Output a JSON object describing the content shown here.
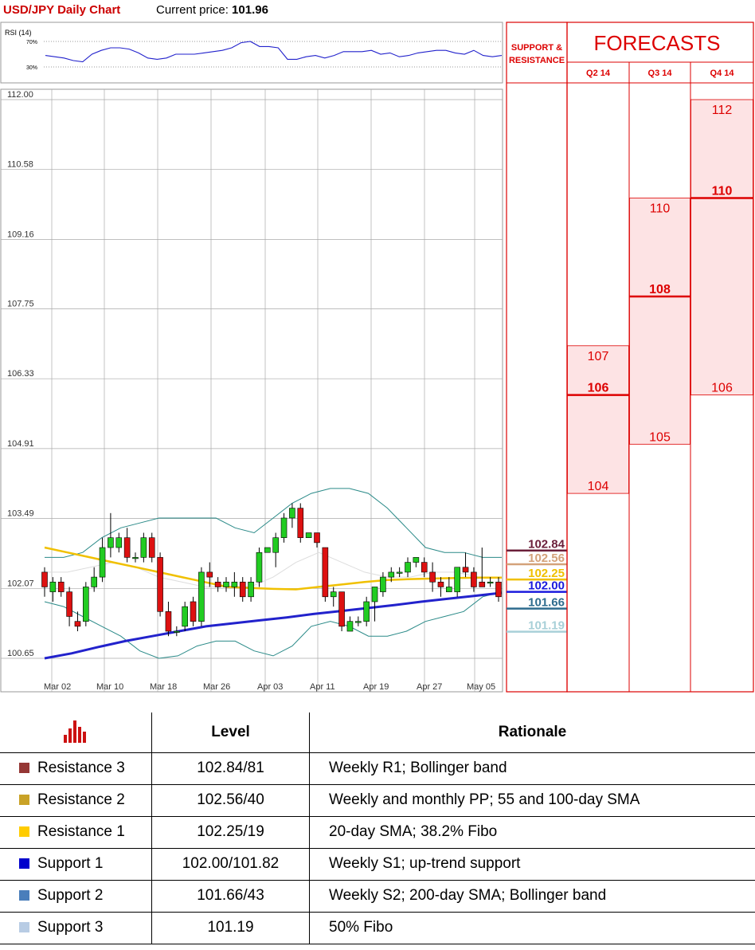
{
  "header": {
    "title": "USD/JPY Daily Chart",
    "price_label": "Current price:",
    "price_value": "101.96"
  },
  "chart_data": {
    "type": "candlestick",
    "y_ticks": [
      "112.00",
      "110.58",
      "109.16",
      "107.75",
      "106.33",
      "104.91",
      "103.49",
      "102.07",
      "100.65"
    ],
    "ylim": [
      100.5,
      112.0
    ],
    "x_ticks": [
      "Mar 02",
      "Mar 10",
      "Mar 18",
      "Mar 26",
      "Apr 03",
      "Apr 11",
      "Apr 19",
      "Apr 27",
      "May 05"
    ],
    "grid": true,
    "candles": [
      [
        102.4,
        102.5,
        101.9,
        102.1
      ],
      [
        102.0,
        102.3,
        101.8,
        102.2
      ],
      [
        102.2,
        102.3,
        101.9,
        102.0
      ],
      [
        102.0,
        102.1,
        101.3,
        101.5
      ],
      [
        101.4,
        101.6,
        101.2,
        101.3
      ],
      [
        101.4,
        102.2,
        101.3,
        102.1
      ],
      [
        102.1,
        102.5,
        102.0,
        102.3
      ],
      [
        102.3,
        103.1,
        102.2,
        102.9
      ],
      [
        102.9,
        103.6,
        102.7,
        103.1
      ],
      [
        102.9,
        103.2,
        102.8,
        103.1
      ],
      [
        103.1,
        103.3,
        102.6,
        102.7
      ],
      [
        102.7,
        102.8,
        102.6,
        102.7
      ],
      [
        102.7,
        103.2,
        102.6,
        103.1
      ],
      [
        103.1,
        103.2,
        102.6,
        102.7
      ],
      [
        102.7,
        102.8,
        101.5,
        101.6
      ],
      [
        101.6,
        101.8,
        101.1,
        101.2
      ],
      [
        101.2,
        101.3,
        101.1,
        101.2
      ],
      [
        101.3,
        101.8,
        101.2,
        101.7
      ],
      [
        101.8,
        101.9,
        101.3,
        101.4
      ],
      [
        101.4,
        102.5,
        101.3,
        102.4
      ],
      [
        102.4,
        102.6,
        102.1,
        102.3
      ],
      [
        102.2,
        102.3,
        102.0,
        102.1
      ],
      [
        102.1,
        102.3,
        102.0,
        102.2
      ],
      [
        102.1,
        102.4,
        101.9,
        102.2
      ],
      [
        102.2,
        102.3,
        101.8,
        101.9
      ],
      [
        101.9,
        102.3,
        101.8,
        102.2
      ],
      [
        102.2,
        102.9,
        102.1,
        102.8
      ],
      [
        102.8,
        102.9,
        102.8,
        102.9
      ],
      [
        102.8,
        103.2,
        102.5,
        103.1
      ],
      [
        103.1,
        103.6,
        103.0,
        103.5
      ],
      [
        103.5,
        103.8,
        103.3,
        103.7
      ],
      [
        103.7,
        103.8,
        103.0,
        103.1
      ],
      [
        103.1,
        103.2,
        103.1,
        103.2
      ],
      [
        103.2,
        103.2,
        102.9,
        103.0
      ],
      [
        102.9,
        102.9,
        101.8,
        101.9
      ],
      [
        101.9,
        102.1,
        101.7,
        102.0
      ],
      [
        102.0,
        102.0,
        101.2,
        101.3
      ],
      [
        101.2,
        101.5,
        101.2,
        101.4
      ],
      [
        101.4,
        101.5,
        101.3,
        101.4
      ],
      [
        101.4,
        101.9,
        101.3,
        101.8
      ],
      [
        101.8,
        102.1,
        101.4,
        102.1
      ],
      [
        102.0,
        102.4,
        101.9,
        102.3
      ],
      [
        102.3,
        102.5,
        102.2,
        102.4
      ],
      [
        102.4,
        102.5,
        102.3,
        102.4
      ],
      [
        102.4,
        102.7,
        102.3,
        102.6
      ],
      [
        102.6,
        102.7,
        102.5,
        102.7
      ],
      [
        102.6,
        102.7,
        102.3,
        102.4
      ],
      [
        102.4,
        102.6,
        102.0,
        102.2
      ],
      [
        102.2,
        102.3,
        101.9,
        102.1
      ],
      [
        102.0,
        102.3,
        102.0,
        102.1
      ],
      [
        102.0,
        102.5,
        101.9,
        102.5
      ],
      [
        102.5,
        102.8,
        102.3,
        102.4
      ],
      [
        102.4,
        102.5,
        102.0,
        102.1
      ],
      [
        102.2,
        102.9,
        102.1,
        102.1
      ],
      [
        102.2,
        102.3,
        102.1,
        102.2
      ],
      [
        102.2,
        102.3,
        101.8,
        101.9
      ]
    ],
    "sma_yellow": [
      102.9,
      102.8,
      102.7,
      102.6,
      102.5,
      102.4,
      102.3,
      102.2,
      102.1,
      102.08,
      102.06,
      102.05,
      102.1,
      102.15,
      102.2,
      102.24,
      102.26,
      102.27,
      102.28,
      102.29,
      102.29
    ],
    "sma_blue": [
      100.65,
      100.75,
      100.88,
      101.0,
      101.1,
      101.2,
      101.3,
      101.36,
      101.42,
      101.48,
      101.55,
      101.61,
      101.67,
      101.73,
      101.8,
      101.86,
      101.92,
      101.98
    ],
    "bb_upper": [
      102.7,
      102.7,
      102.8,
      103.1,
      103.3,
      103.4,
      103.5,
      103.5,
      103.5,
      103.5,
      103.3,
      103.2,
      103.5,
      103.8,
      104.0,
      104.1,
      104.1,
      104.0,
      103.7,
      103.3,
      102.9,
      102.8,
      102.8,
      102.7,
      102.7
    ],
    "bb_lower": [
      101.8,
      101.7,
      101.5,
      101.3,
      101.1,
      100.8,
      100.65,
      100.7,
      100.9,
      101.0,
      101.0,
      100.8,
      100.7,
      100.9,
      101.3,
      101.4,
      101.3,
      101.1,
      101.1,
      101.2,
      101.4,
      101.5,
      101.6,
      101.9,
      102.0
    ],
    "bb_mid": [
      102.4,
      102.4,
      102.5,
      102.6,
      102.5,
      102.3,
      102.2,
      102.1,
      102.1,
      102.1,
      102.3,
      102.6,
      102.8,
      102.6,
      102.4,
      102.3,
      102.3,
      102.4,
      102.4,
      102.3,
      102.3
    ],
    "rsi": {
      "label": "RSI (14)",
      "levels": [
        "70%",
        "30%"
      ],
      "values": [
        48,
        46,
        44,
        40,
        38,
        50,
        56,
        60,
        60,
        58,
        52,
        44,
        42,
        44,
        50,
        50,
        50,
        52,
        54,
        56,
        60,
        68,
        70,
        62,
        62,
        60,
        42,
        42,
        46,
        48,
        44,
        48,
        54,
        54,
        54,
        56,
        50,
        52,
        46,
        48,
        52,
        54,
        56,
        56,
        52,
        50,
        56,
        48,
        46,
        48
      ]
    },
    "sr_levels": [
      {
        "label": "102.84",
        "value": 102.84,
        "color": "#6b1f3a"
      },
      {
        "label": "102.56",
        "value": 102.56,
        "color": "#d4a27a"
      },
      {
        "label": "102.25",
        "value": 102.25,
        "color": "#f0c000"
      },
      {
        "label": "102.00",
        "value": 102.0,
        "color": "#1a1add"
      },
      {
        "label": "101.66",
        "value": 101.66,
        "color": "#2e6c8e"
      },
      {
        "label": "101.19",
        "value": 101.19,
        "color": "#a8d0d8"
      }
    ],
    "forecasts": {
      "title": "FORECASTS",
      "sr_header": "SUPPORT & RESISTANCE",
      "columns": [
        {
          "label": "Q2 14",
          "high": "107",
          "mid": "106",
          "low": "104",
          "high_v": 107,
          "mid_v": 106,
          "low_v": 104
        },
        {
          "label": "Q3 14",
          "high": "110",
          "mid": "108",
          "low": "105",
          "high_v": 110,
          "mid_v": 108,
          "low_v": 105
        },
        {
          "label": "Q4 14",
          "high": "112",
          "mid": "110",
          "low": "106",
          "high_v": 112,
          "mid_v": 110,
          "low_v": 106
        }
      ]
    }
  },
  "table": {
    "headers": {
      "level": "Level",
      "rationale": "Rationale"
    },
    "rows": [
      {
        "name": "Resistance 3",
        "level": "102.84/81",
        "rationale": "Weekly R1; Bollinger band",
        "color": "#953735"
      },
      {
        "name": "Resistance 2",
        "level": "102.56/40",
        "rationale": "Weekly and monthly PP; 55 and 100-day SMA",
        "color": "#c9a227"
      },
      {
        "name": "Resistance 1",
        "level": "102.25/19",
        "rationale": "20-day SMA; 38.2% Fibo",
        "color": "#ffcc00"
      },
      {
        "name": "Support 1",
        "level": "102.00/101.82",
        "rationale": "Weekly S1; up-trend support",
        "color": "#0000cc"
      },
      {
        "name": "Support 2",
        "level": "101.66/43",
        "rationale": "Weekly S2; 200-day SMA; Bollinger band",
        "color": "#4a7ebb"
      },
      {
        "name": "Support 3",
        "level": "101.19",
        "rationale": "50% Fibo",
        "color": "#b8cce4"
      }
    ]
  }
}
